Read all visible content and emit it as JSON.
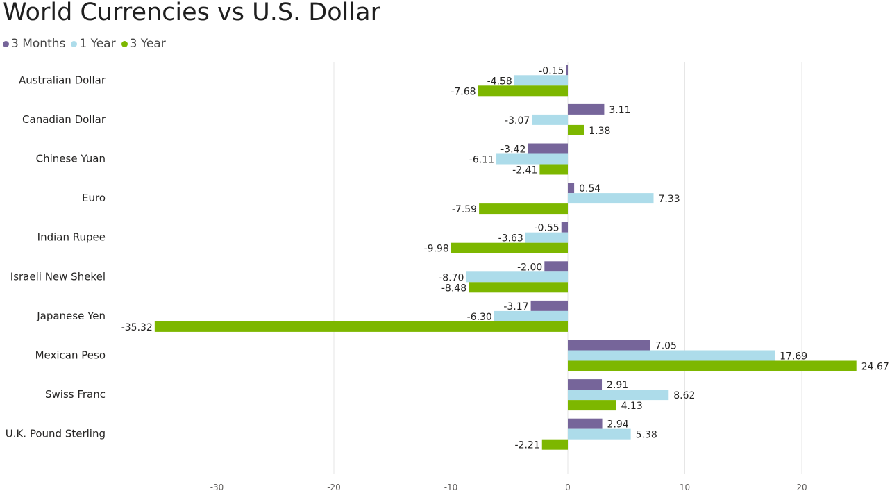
{
  "chart_data": {
    "type": "bar",
    "orientation": "horizontal",
    "title": "World Currencies vs U.S. Dollar",
    "categories": [
      "Australian Dollar",
      "Canadian Dollar",
      "Chinese Yuan",
      "Euro",
      "Indian Rupee",
      "Israeli New Shekel",
      "Japanese Yen",
      "Mexican Peso",
      "Swiss Franc",
      "U.K. Pound Sterling"
    ],
    "series": [
      {
        "name": "3 Months",
        "color": "#76659a",
        "values": [
          -0.15,
          3.11,
          -3.42,
          0.54,
          -0.55,
          -2.0,
          -3.17,
          7.05,
          2.91,
          2.94
        ]
      },
      {
        "name": "1 Year",
        "color": "#addcea",
        "values": [
          -4.58,
          -3.07,
          -6.11,
          7.33,
          -3.63,
          -8.7,
          -6.3,
          17.69,
          8.62,
          5.38
        ]
      },
      {
        "name": "3 Year",
        "color": "#7db700",
        "values": [
          -7.68,
          1.38,
          -2.41,
          -7.59,
          -9.98,
          -8.48,
          -35.32,
          24.67,
          4.13,
          -2.21
        ]
      }
    ],
    "data_labels": [
      [
        "-0.15",
        "-4.58",
        "-7.68"
      ],
      [
        "3.11",
        "-3.07",
        "1.38"
      ],
      [
        "-3.42",
        "-6.11",
        "-2.41"
      ],
      [
        "0.54",
        "7.33",
        "-7.59"
      ],
      [
        "-0.55",
        "-3.63",
        "-9.98"
      ],
      [
        "-2.00",
        "-8.70",
        "-8.48"
      ],
      [
        "-3.17",
        "-6.30",
        "-35.32"
      ],
      [
        "7.05",
        "17.69",
        "24.67"
      ],
      [
        "2.91",
        "8.62",
        "4.13"
      ],
      [
        "2.94",
        "5.38",
        "-2.21"
      ]
    ],
    "x_ticks": [
      -30,
      -20,
      -10,
      0,
      10,
      20
    ],
    "x_tick_labels": [
      "-30",
      "-20",
      "-10",
      "0",
      "10",
      "20"
    ],
    "xlim": [
      -35.32,
      27.5
    ],
    "xlabel": "",
    "ylabel": "",
    "grid": true,
    "legend_position": "top-left"
  }
}
